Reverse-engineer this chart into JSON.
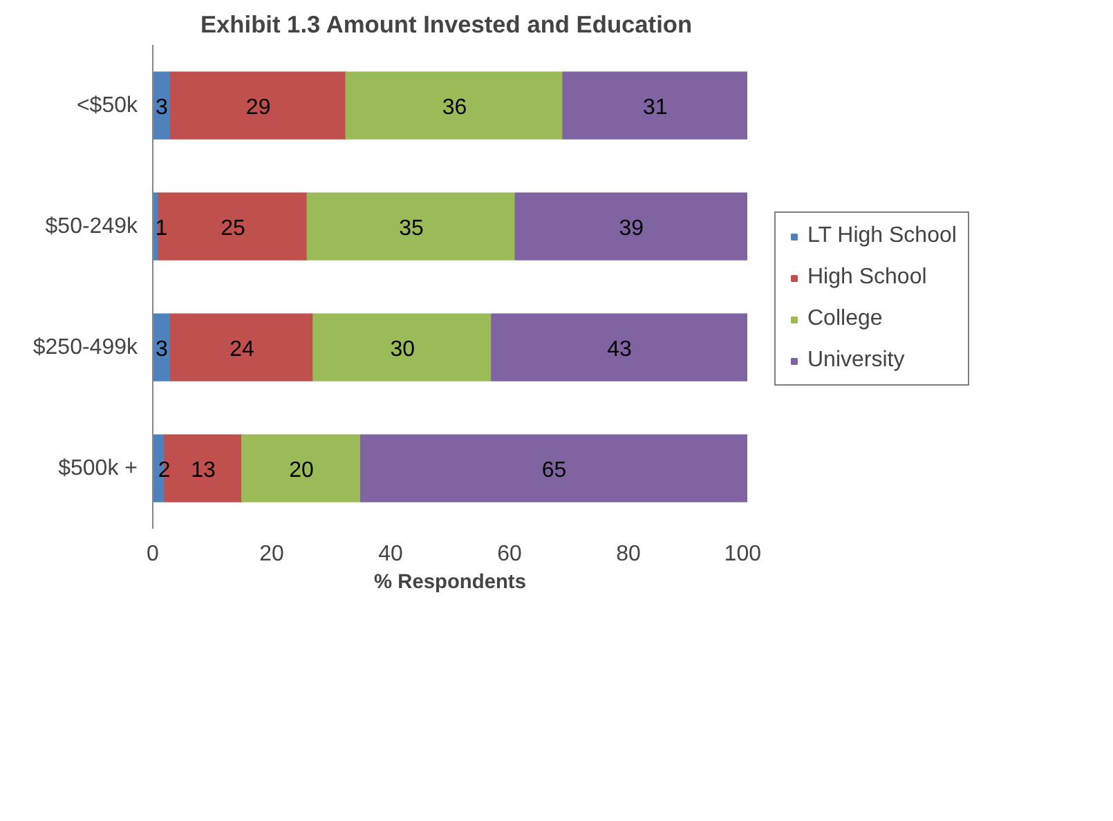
{
  "chart_data": {
    "type": "bar",
    "orientation": "horizontal",
    "stacked": true,
    "title": "Exhibit 1.3  Amount Invested and Education",
    "xlabel": "% Respondents",
    "categories": [
      "<$50k",
      "$50-249k",
      "$250-499k",
      "$500k +"
    ],
    "series": [
      {
        "name": "LT High School",
        "color": "#4f81bd",
        "values": [
          3,
          1,
          3,
          2
        ],
        "value_labels": [
          "3",
          "1",
          "3",
          "2"
        ]
      },
      {
        "name": "High School",
        "color": "#c0504d",
        "values": [
          29.5,
          25,
          24,
          13
        ],
        "value_labels": [
          "29",
          "25",
          "24",
          "13"
        ]
      },
      {
        "name": "College",
        "color": "#9bbb59",
        "values": [
          36.5,
          35,
          30,
          20
        ],
        "value_labels": [
          "36",
          "35",
          "30",
          "20"
        ]
      },
      {
        "name": "University",
        "color": "#8064a2",
        "values": [
          31,
          39,
          43,
          65
        ],
        "value_labels": [
          "31",
          "39",
          "43",
          "65"
        ]
      }
    ],
    "xlim": [
      0,
      100
    ],
    "xticks": [
      0,
      20,
      40,
      60,
      80,
      100
    ],
    "grid": false,
    "legend": "right"
  }
}
